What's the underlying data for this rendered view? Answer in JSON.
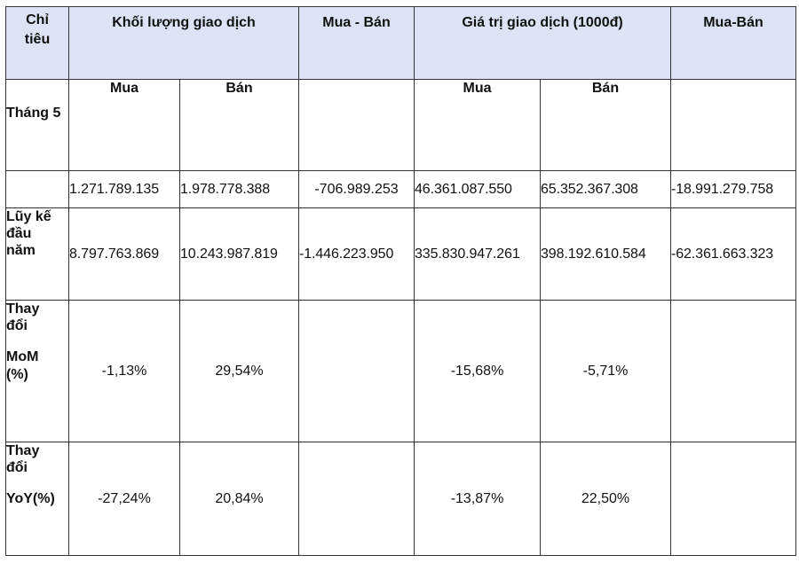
{
  "header": {
    "col0": [
      "Chỉ",
      "tiêu"
    ],
    "volume": "Khối lượng giao dịch",
    "net1": "Mua - Bán",
    "value": "Giá trị giao dịch (1000đ)",
    "net2": "Mua-Bán"
  },
  "subheader": {
    "period": "Tháng 5",
    "buy1": "Mua",
    "sell1": "Bán",
    "buy2": "Mua",
    "sell2": "Bán"
  },
  "rows": {
    "month": {
      "label": "",
      "cells": [
        "1.271.789.135",
        "1.978.778.388",
        "-706.989.253",
        "46.361.087.550",
        "65.352.367.308",
        "-18.991.279.758"
      ]
    },
    "ytd": {
      "label": [
        "Lũy kế",
        "đầu",
        "năm"
      ],
      "cells": [
        "8.797.763.869",
        "10.243.987.819",
        "-1.446.223.950",
        "335.830.947.261",
        "398.192.610.584",
        "-62.361.663.323"
      ]
    },
    "mom": {
      "label_top": [
        "Thay",
        "đổi"
      ],
      "label_bottom": [
        "MoM",
        "(%)"
      ],
      "cells": [
        "-1,13%",
        "29,54%",
        "",
        "-15,68%",
        "-5,71%",
        ""
      ]
    },
    "yoy": {
      "label_top": [
        "Thay",
        "đổi"
      ],
      "label_bottom": [
        "YoY(%)"
      ],
      "cells": [
        "-27,24%",
        "20,84%",
        "",
        "-13,87%",
        "22,50%",
        ""
      ]
    }
  }
}
